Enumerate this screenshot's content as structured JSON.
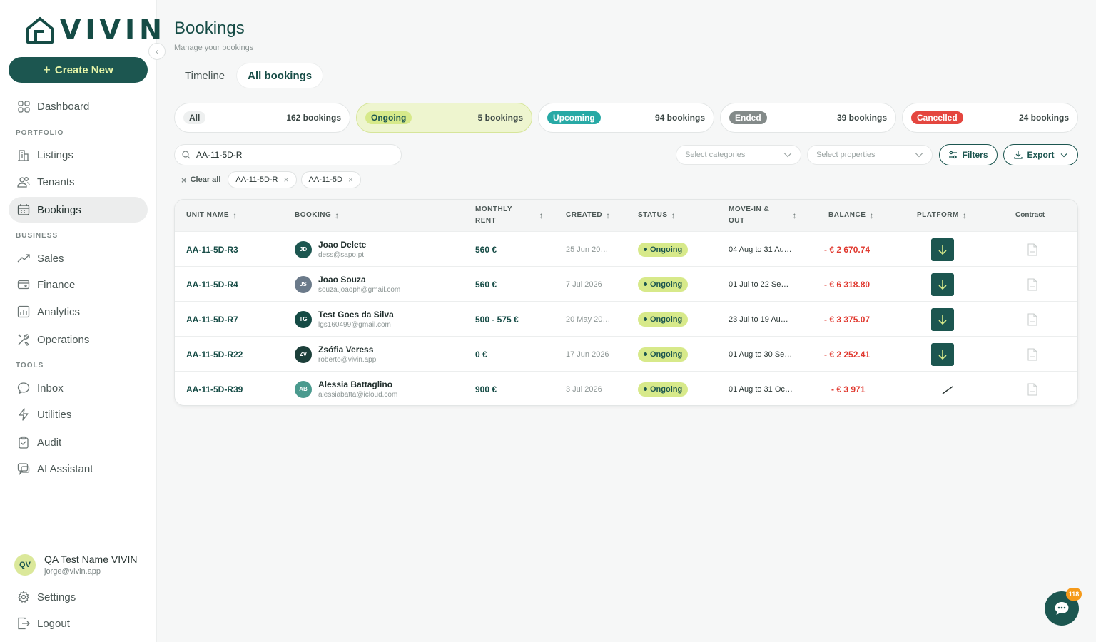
{
  "app": {
    "logo_text": "VIVIN"
  },
  "sidebar": {
    "create_label": "Create New",
    "sections": {
      "portfolio": "PORTFOLIO",
      "business": "BUSINESS",
      "tools": "TOOLS"
    },
    "items": [
      {
        "label": "Dashboard",
        "icon": "grid-icon"
      },
      {
        "label": "Listings",
        "icon": "building-icon"
      },
      {
        "label": "Tenants",
        "icon": "users-icon"
      },
      {
        "label": "Bookings",
        "icon": "calendar-icon"
      },
      {
        "label": "Sales",
        "icon": "trend-icon"
      },
      {
        "label": "Finance",
        "icon": "wallet-icon"
      },
      {
        "label": "Analytics",
        "icon": "chart-icon"
      },
      {
        "label": "Operations",
        "icon": "tools-icon"
      },
      {
        "label": "Inbox",
        "icon": "chat-icon"
      },
      {
        "label": "Utilities",
        "icon": "bolt-icon"
      },
      {
        "label": "Audit",
        "icon": "clipboard-icon"
      },
      {
        "label": "AI Assistant",
        "icon": "assistant-icon"
      },
      {
        "label": "Settings",
        "icon": "gear-icon"
      },
      {
        "label": "Logout",
        "icon": "logout-icon"
      }
    ],
    "user": {
      "initials": "QV",
      "name": "QA Test Name VIVIN",
      "email": "jorge@vivin.app"
    }
  },
  "header": {
    "title": "Bookings",
    "subtitle": "Manage your bookings"
  },
  "tabs": [
    {
      "label": "Timeline"
    },
    {
      "label": "All bookings"
    }
  ],
  "status_cards": [
    {
      "label": "All",
      "count": "162 bookings"
    },
    {
      "label": "Ongoing",
      "count": "5 bookings"
    },
    {
      "label": "Upcoming",
      "count": "94 bookings"
    },
    {
      "label": "Ended",
      "count": "39 bookings"
    },
    {
      "label": "Cancelled",
      "count": "24 bookings"
    }
  ],
  "filters": {
    "search_value": "AA-11-5D-R",
    "categories_placeholder": "Select categories",
    "properties_placeholder": "Select properties",
    "filters_label": "Filters",
    "export_label": "Export",
    "clear_all": "Clear all",
    "chips": [
      "AA-11-5D-R",
      "AA-11-5D"
    ]
  },
  "table": {
    "headers": {
      "unit_name": "UNIT NAME",
      "booking": "BOOKING",
      "monthly_rent_1": "MONTHLY",
      "monthly_rent_2": "RENT",
      "created": "CREATED",
      "status": "STATUS",
      "move_1": "MOVE-IN &",
      "move_2": "OUT",
      "balance": "BALANCE",
      "platform": "PLATFORM",
      "contract": "Contract"
    },
    "rows": [
      {
        "unit": "AA-11-5D-R3",
        "initials": "JD",
        "avatar_color": "#1c5650",
        "name": "Joao Delete",
        "email": "dess@sapo.pt",
        "rent": "560 €",
        "created": "25 Jun 20…",
        "status": "Ongoing",
        "move": "04 Aug to 31 Au…",
        "balance": "- € 2 670.74"
      },
      {
        "unit": "AA-11-5D-R4",
        "initials": "JS",
        "avatar_color": "#6b7a8a",
        "name": "Joao Souza",
        "email": "souza.joaoph@gmail.com",
        "rent": "560 €",
        "created": "7 Jul 2026",
        "status": "Ongoing",
        "move": "01 Jul to 22 Se…",
        "balance": "- € 6 318.80"
      },
      {
        "unit": "AA-11-5D-R7",
        "initials": "TG",
        "avatar_color": "#154b45",
        "name": "Test Goes da Silva",
        "email": "lgs160499@gmail.com",
        "rent": "500 - 575 €",
        "created": "20 May 20…",
        "status": "Ongoing",
        "move": "23 Jul to 19 Au…",
        "balance": "- € 3 375.07"
      },
      {
        "unit": "AA-11-5D-R22",
        "initials": "ZV",
        "avatar_color": "#1c3f3a",
        "name": "Zsófia Veress",
        "email": "roberto@vivin.app",
        "rent": "0 €",
        "created": "17 Jun 2026",
        "status": "Ongoing",
        "move": "01 Aug to 30 Se…",
        "balance": "- € 2 252.41"
      },
      {
        "unit": "AA-11-5D-R39",
        "initials": "AB",
        "avatar_color": "#4a9a8e",
        "name": "Alessia Battaglino",
        "email": "alessiabatta@icloud.com",
        "rent": "900 €",
        "created": "3 Jul 2026",
        "status": "Ongoing",
        "move": "01 Aug to 31 Oc…",
        "balance": "- € 3 971"
      }
    ]
  },
  "chat": {
    "badge": "118"
  }
}
